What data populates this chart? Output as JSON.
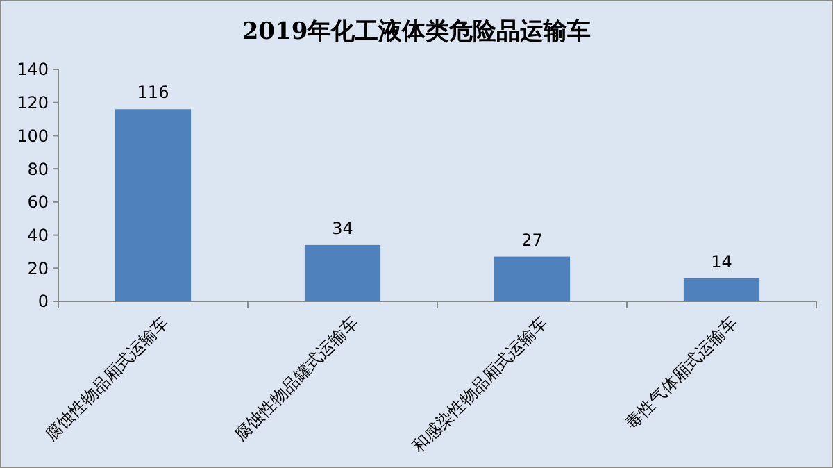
{
  "chart_data": {
    "type": "bar",
    "title": "2019年化工液体类危险品运输车",
    "categories": [
      "腐蚀性物品厢式运输车",
      "腐蚀性物品罐式运输车",
      "和感染性物品厢式运输车",
      "毒性气体厢式运输车"
    ],
    "values": [
      116,
      34,
      27,
      14
    ],
    "color": "#4f81bd",
    "data_labels": true,
    "ylim": [
      0,
      140
    ],
    "yticks": [
      0,
      20,
      40,
      60,
      80,
      100,
      120,
      140
    ],
    "grid": false
  }
}
